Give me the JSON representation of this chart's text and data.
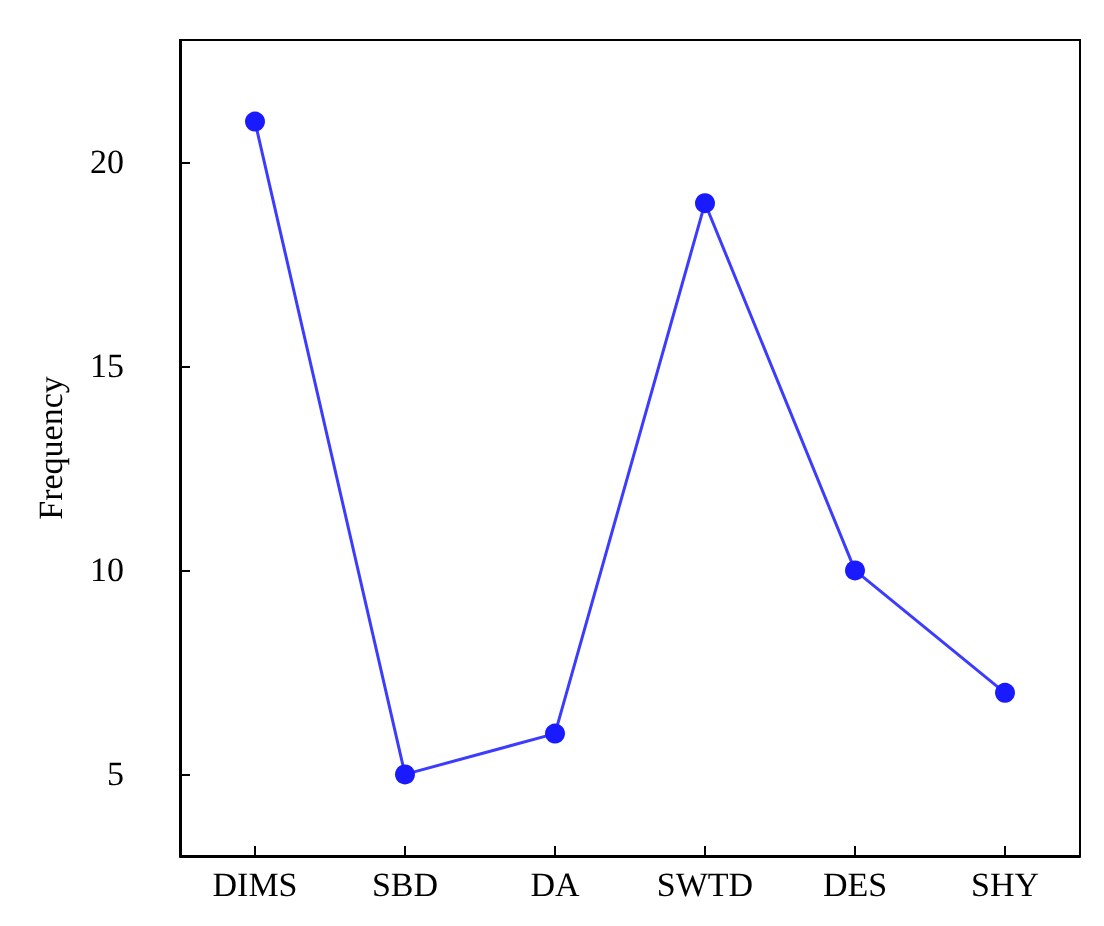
{
  "chart_data": {
    "type": "line",
    "ylabel": "Frequency",
    "categories": [
      "DIMS",
      "SBD",
      "DA",
      "SWTD",
      "DES",
      "SHY"
    ],
    "series": [
      {
        "color": "#1a1aff",
        "values": [
          21,
          5,
          6,
          19,
          10,
          7
        ]
      }
    ],
    "ylim": [
      3,
      23
    ],
    "yticks": [
      5,
      10,
      15,
      20
    ],
    "grid": false,
    "marker": "circle",
    "line_style": "solid"
  }
}
